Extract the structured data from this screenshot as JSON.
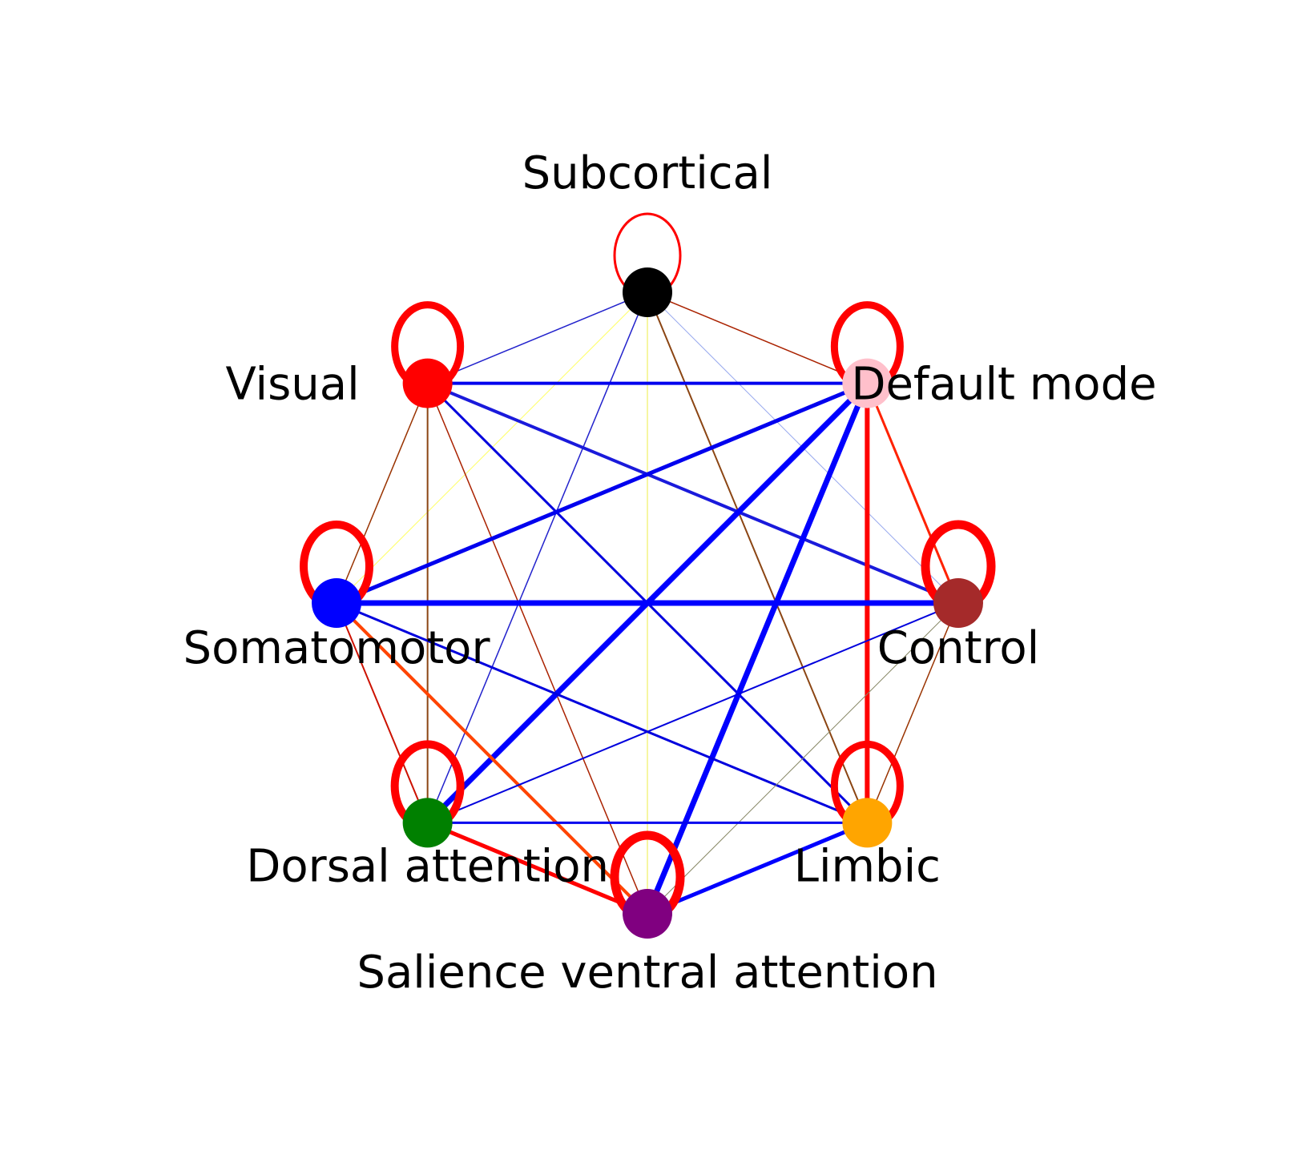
{
  "nodes": [
    {
      "id": "subcortical",
      "label": "Subcortical",
      "color": "#000000",
      "self_loop": {
        "color": "#ff0000",
        "weight": 3
      }
    },
    {
      "id": "default-mode",
      "label": "Default mode",
      "color": "#ffc0cb",
      "self_loop": {
        "color": "#ff0000",
        "weight": 9
      }
    },
    {
      "id": "control",
      "label": "Control",
      "color": "#a52a2a",
      "self_loop": {
        "color": "#ff0000",
        "weight": 11
      }
    },
    {
      "id": "limbic",
      "label": "Limbic",
      "color": "#ffa500",
      "self_loop": {
        "color": "#ff0000",
        "weight": 9
      }
    },
    {
      "id": "salience-ventral-attention",
      "label": "Salience ventral attention",
      "color": "#800080",
      "self_loop": {
        "color": "#ff0000",
        "weight": 11
      }
    },
    {
      "id": "dorsal-attention",
      "label": "Dorsal attention",
      "color": "#008000",
      "self_loop": {
        "color": "#ff0000",
        "weight": 10
      }
    },
    {
      "id": "somatomotor",
      "label": "Somatomotor",
      "color": "#0000ff",
      "self_loop": {
        "color": "#ff0000",
        "weight": 10
      }
    },
    {
      "id": "visual",
      "label": "Visual",
      "color": "#ff0000",
      "self_loop": {
        "color": "#ff0000",
        "weight": 9
      }
    }
  ],
  "edges": [
    {
      "source": "subcortical",
      "target": "visual",
      "color": "#2222cc",
      "weight": 1.5
    },
    {
      "source": "subcortical",
      "target": "default-mode",
      "color": "#aa2200",
      "weight": 1.5
    },
    {
      "source": "subcortical",
      "target": "somatomotor",
      "color": "#ffff66",
      "weight": 1
    },
    {
      "source": "subcortical",
      "target": "control",
      "color": "#99aaee",
      "weight": 1
    },
    {
      "source": "subcortical",
      "target": "dorsal-attention",
      "color": "#2222cc",
      "weight": 1.5
    },
    {
      "source": "subcortical",
      "target": "limbic",
      "color": "#8b4513",
      "weight": 2
    },
    {
      "source": "subcortical",
      "target": "salience-ventral-attention",
      "color": "#eeee44",
      "weight": 1
    },
    {
      "source": "visual",
      "target": "default-mode",
      "color": "#0000ee",
      "weight": 4
    },
    {
      "source": "visual",
      "target": "control",
      "color": "#1a1adb",
      "weight": 4
    },
    {
      "source": "visual",
      "target": "somatomotor",
      "color": "#993300",
      "weight": 1.5
    },
    {
      "source": "visual",
      "target": "limbic",
      "color": "#0000dd",
      "weight": 3
    },
    {
      "source": "visual",
      "target": "dorsal-attention",
      "color": "#8b4513",
      "weight": 2
    },
    {
      "source": "visual",
      "target": "salience-ventral-attention",
      "color": "#aa2200",
      "weight": 1.5
    },
    {
      "source": "default-mode",
      "target": "somatomotor",
      "color": "#0000ee",
      "weight": 5
    },
    {
      "source": "default-mode",
      "target": "control",
      "color": "#ff2200",
      "weight": 3
    },
    {
      "source": "default-mode",
      "target": "dorsal-attention",
      "color": "#0000ff",
      "weight": 7
    },
    {
      "source": "default-mode",
      "target": "salience-ventral-attention",
      "color": "#0000ff",
      "weight": 7
    },
    {
      "source": "default-mode",
      "target": "limbic",
      "color": "#ff0000",
      "weight": 6
    },
    {
      "source": "somatomotor",
      "target": "control",
      "color": "#0000ff",
      "weight": 7
    },
    {
      "source": "somatomotor",
      "target": "dorsal-attention",
      "color": "#cc1100",
      "weight": 2
    },
    {
      "source": "somatomotor",
      "target": "salience-ventral-attention",
      "color": "#ff4400",
      "weight": 4
    },
    {
      "source": "somatomotor",
      "target": "limbic",
      "color": "#0000dd",
      "weight": 3
    },
    {
      "source": "control",
      "target": "dorsal-attention",
      "color": "#0000dd",
      "weight": 2
    },
    {
      "source": "control",
      "target": "salience-ventral-attention",
      "color": "#888866",
      "weight": 1
    },
    {
      "source": "control",
      "target": "limbic",
      "color": "#993300",
      "weight": 1.5
    },
    {
      "source": "dorsal-attention",
      "target": "limbic",
      "color": "#0000ee",
      "weight": 3
    },
    {
      "source": "dorsal-attention",
      "target": "salience-ventral-attention",
      "color": "#ff0000",
      "weight": 5
    },
    {
      "source": "limbic",
      "target": "salience-ventral-attention",
      "color": "#0000ff",
      "weight": 5
    }
  ]
}
